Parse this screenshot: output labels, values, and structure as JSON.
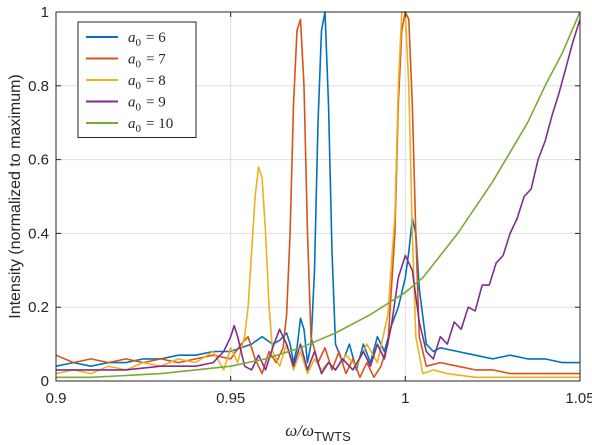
{
  "chart_data": {
    "type": "line",
    "xlabel": "ω/ω_TWTS",
    "xlabel_main": "ω/ω",
    "xlabel_sub": "TWTS",
    "ylabel": "Intensity (normalized to maximum)",
    "xlim": [
      0.9,
      1.05
    ],
    "ylim": [
      0,
      1
    ],
    "xticks": [
      0.9,
      0.95,
      1.0,
      1.05
    ],
    "xtick_labels": [
      "0.9",
      "0.95",
      "1",
      "1.05"
    ],
    "yticks": [
      0,
      0.2,
      0.4,
      0.6,
      0.8,
      1
    ],
    "ytick_labels": [
      "0",
      "0.2",
      "0.4",
      "0.6",
      "0.8",
      "1"
    ],
    "grid": true,
    "legend_position": "top-left",
    "series": [
      {
        "name": "a₀ = 6",
        "name_var": "a",
        "name_sub": "0",
        "name_value": "= 6",
        "color": "#0072BD",
        "points": [
          [
            0.9,
            0.04
          ],
          [
            0.905,
            0.05
          ],
          [
            0.91,
            0.04
          ],
          [
            0.915,
            0.05
          ],
          [
            0.92,
            0.05
          ],
          [
            0.925,
            0.06
          ],
          [
            0.93,
            0.06
          ],
          [
            0.935,
            0.07
          ],
          [
            0.94,
            0.07
          ],
          [
            0.945,
            0.08
          ],
          [
            0.95,
            0.08
          ],
          [
            0.953,
            0.09
          ],
          [
            0.956,
            0.1
          ],
          [
            0.959,
            0.12
          ],
          [
            0.962,
            0.1
          ],
          [
            0.964,
            0.11
          ],
          [
            0.966,
            0.13
          ],
          [
            0.967,
            0.1
          ],
          [
            0.968,
            0.05
          ],
          [
            0.969,
            0.09
          ],
          [
            0.97,
            0.17
          ],
          [
            0.971,
            0.14
          ],
          [
            0.972,
            0.05
          ],
          [
            0.973,
            0.1
          ],
          [
            0.974,
            0.3
          ],
          [
            0.975,
            0.7
          ],
          [
            0.976,
            0.95
          ],
          [
            0.977,
            1.0
          ],
          [
            0.978,
            0.75
          ],
          [
            0.979,
            0.35
          ],
          [
            0.98,
            0.1
          ],
          [
            0.982,
            0.05
          ],
          [
            0.984,
            0.1
          ],
          [
            0.986,
            0.03
          ],
          [
            0.988,
            0.1
          ],
          [
            0.99,
            0.05
          ],
          [
            0.992,
            0.12
          ],
          [
            0.994,
            0.08
          ],
          [
            0.996,
            0.15
          ],
          [
            0.998,
            0.2
          ],
          [
            1.0,
            0.28
          ],
          [
            1.001,
            0.35
          ],
          [
            1.002,
            0.44
          ],
          [
            1.003,
            0.4
          ],
          [
            1.004,
            0.25
          ],
          [
            1.006,
            0.1
          ],
          [
            1.008,
            0.08
          ],
          [
            1.01,
            0.09
          ],
          [
            1.015,
            0.08
          ],
          [
            1.02,
            0.07
          ],
          [
            1.025,
            0.06
          ],
          [
            1.03,
            0.07
          ],
          [
            1.035,
            0.06
          ],
          [
            1.04,
            0.06
          ],
          [
            1.045,
            0.05
          ],
          [
            1.05,
            0.05
          ]
        ]
      },
      {
        "name": "a₀ = 7",
        "name_var": "a",
        "name_sub": "0",
        "name_value": "= 7",
        "color": "#D95319",
        "points": [
          [
            0.9,
            0.07
          ],
          [
            0.905,
            0.05
          ],
          [
            0.91,
            0.06
          ],
          [
            0.915,
            0.05
          ],
          [
            0.92,
            0.06
          ],
          [
            0.925,
            0.05
          ],
          [
            0.93,
            0.06
          ],
          [
            0.935,
            0.05
          ],
          [
            0.94,
            0.06
          ],
          [
            0.945,
            0.07
          ],
          [
            0.95,
            0.06
          ],
          [
            0.953,
            0.1
          ],
          [
            0.955,
            0.12
          ],
          [
            0.957,
            0.06
          ],
          [
            0.959,
            0.02
          ],
          [
            0.961,
            0.08
          ],
          [
            0.963,
            0.05
          ],
          [
            0.965,
            0.09
          ],
          [
            0.966,
            0.18
          ],
          [
            0.967,
            0.4
          ],
          [
            0.968,
            0.75
          ],
          [
            0.969,
            0.95
          ],
          [
            0.97,
            0.98
          ],
          [
            0.971,
            0.8
          ],
          [
            0.972,
            0.4
          ],
          [
            0.973,
            0.12
          ],
          [
            0.975,
            0.05
          ],
          [
            0.977,
            0.09
          ],
          [
            0.979,
            0.03
          ],
          [
            0.981,
            0.08
          ],
          [
            0.983,
            0.02
          ],
          [
            0.985,
            0.06
          ],
          [
            0.987,
            0.01
          ],
          [
            0.989,
            0.05
          ],
          [
            0.991,
            0.01
          ],
          [
            0.993,
            0.04
          ],
          [
            0.995,
            0.1
          ],
          [
            0.997,
            0.4
          ],
          [
            0.998,
            0.75
          ],
          [
            0.999,
            0.95
          ],
          [
            1.0,
            1.0
          ],
          [
            1.001,
            0.98
          ],
          [
            1.002,
            0.75
          ],
          [
            1.003,
            0.4
          ],
          [
            1.004,
            0.12
          ],
          [
            1.006,
            0.04
          ],
          [
            1.01,
            0.05
          ],
          [
            1.015,
            0.04
          ],
          [
            1.02,
            0.03
          ],
          [
            1.025,
            0.03
          ],
          [
            1.03,
            0.02
          ],
          [
            1.035,
            0.02
          ],
          [
            1.04,
            0.02
          ],
          [
            1.045,
            0.02
          ],
          [
            1.05,
            0.02
          ]
        ]
      },
      {
        "name": "a₀ = 8",
        "name_var": "a",
        "name_sub": "0",
        "name_value": "= 8",
        "color": "#EDB120",
        "points": [
          [
            0.9,
            0.02
          ],
          [
            0.905,
            0.03
          ],
          [
            0.91,
            0.02
          ],
          [
            0.915,
            0.04
          ],
          [
            0.92,
            0.03
          ],
          [
            0.925,
            0.05
          ],
          [
            0.93,
            0.04
          ],
          [
            0.935,
            0.06
          ],
          [
            0.94,
            0.05
          ],
          [
            0.945,
            0.08
          ],
          [
            0.948,
            0.03
          ],
          [
            0.95,
            0.09
          ],
          [
            0.952,
            0.05
          ],
          [
            0.954,
            0.12
          ],
          [
            0.955,
            0.2
          ],
          [
            0.956,
            0.35
          ],
          [
            0.957,
            0.5
          ],
          [
            0.958,
            0.58
          ],
          [
            0.959,
            0.55
          ],
          [
            0.96,
            0.4
          ],
          [
            0.961,
            0.2
          ],
          [
            0.962,
            0.08
          ],
          [
            0.964,
            0.04
          ],
          [
            0.966,
            0.1
          ],
          [
            0.968,
            0.03
          ],
          [
            0.97,
            0.08
          ],
          [
            0.972,
            0.02
          ],
          [
            0.974,
            0.06
          ],
          [
            0.976,
            0.03
          ],
          [
            0.978,
            0.05
          ],
          [
            0.98,
            0.03
          ],
          [
            0.983,
            0.07
          ],
          [
            0.986,
            0.04
          ],
          [
            0.989,
            0.1
          ],
          [
            0.992,
            0.05
          ],
          [
            0.995,
            0.18
          ],
          [
            0.997,
            0.45
          ],
          [
            0.998,
            0.8
          ],
          [
            0.999,
            1.0
          ],
          [
            1.0,
            1.0
          ],
          [
            1.001,
            0.8
          ],
          [
            1.002,
            0.4
          ],
          [
            1.003,
            0.12
          ],
          [
            1.005,
            0.02
          ],
          [
            1.008,
            0.03
          ],
          [
            1.012,
            0.02
          ],
          [
            1.02,
            0.01
          ],
          [
            1.03,
            0.01
          ],
          [
            1.04,
            0.01
          ],
          [
            1.05,
            0.01
          ]
        ]
      },
      {
        "name": "a₀ = 9",
        "name_var": "a",
        "name_sub": "0",
        "name_value": "= 9",
        "color": "#7E2F8E",
        "points": [
          [
            0.9,
            0.03
          ],
          [
            0.91,
            0.03
          ],
          [
            0.92,
            0.03
          ],
          [
            0.93,
            0.04
          ],
          [
            0.94,
            0.04
          ],
          [
            0.945,
            0.05
          ],
          [
            0.948,
            0.08
          ],
          [
            0.95,
            0.12
          ],
          [
            0.951,
            0.15
          ],
          [
            0.952,
            0.12
          ],
          [
            0.954,
            0.04
          ],
          [
            0.956,
            0.03
          ],
          [
            0.958,
            0.07
          ],
          [
            0.96,
            0.03
          ],
          [
            0.962,
            0.09
          ],
          [
            0.964,
            0.14
          ],
          [
            0.966,
            0.1
          ],
          [
            0.968,
            0.04
          ],
          [
            0.97,
            0.1
          ],
          [
            0.972,
            0.03
          ],
          [
            0.974,
            0.08
          ],
          [
            0.976,
            0.02
          ],
          [
            0.978,
            0.05
          ],
          [
            0.98,
            0.03
          ],
          [
            0.982,
            0.06
          ],
          [
            0.985,
            0.03
          ],
          [
            0.988,
            0.08
          ],
          [
            0.99,
            0.04
          ],
          [
            0.992,
            0.1
          ],
          [
            0.994,
            0.06
          ],
          [
            0.996,
            0.15
          ],
          [
            0.998,
            0.28
          ],
          [
            1.0,
            0.34
          ],
          [
            1.002,
            0.3
          ],
          [
            1.004,
            0.16
          ],
          [
            1.006,
            0.08
          ],
          [
            1.008,
            0.06
          ],
          [
            1.01,
            0.12
          ],
          [
            1.012,
            0.1
          ],
          [
            1.014,
            0.16
          ],
          [
            1.016,
            0.14
          ],
          [
            1.018,
            0.2
          ],
          [
            1.02,
            0.19
          ],
          [
            1.022,
            0.26
          ],
          [
            1.024,
            0.26
          ],
          [
            1.026,
            0.32
          ],
          [
            1.028,
            0.34
          ],
          [
            1.03,
            0.4
          ],
          [
            1.032,
            0.44
          ],
          [
            1.034,
            0.5
          ],
          [
            1.036,
            0.52
          ],
          [
            1.038,
            0.6
          ],
          [
            1.04,
            0.65
          ],
          [
            1.042,
            0.72
          ],
          [
            1.044,
            0.78
          ],
          [
            1.046,
            0.85
          ],
          [
            1.048,
            0.92
          ],
          [
            1.05,
            0.98
          ]
        ]
      },
      {
        "name": "a₀ = 10",
        "name_var": "a",
        "name_sub": "0",
        "name_value": "= 10",
        "color": "#77AC30",
        "points": [
          [
            0.9,
            0.01
          ],
          [
            0.91,
            0.01
          ],
          [
            0.92,
            0.015
          ],
          [
            0.93,
            0.02
          ],
          [
            0.94,
            0.03
          ],
          [
            0.95,
            0.04
          ],
          [
            0.96,
            0.06
          ],
          [
            0.97,
            0.09
          ],
          [
            0.98,
            0.13
          ],
          [
            0.99,
            0.18
          ],
          [
            1.0,
            0.24
          ],
          [
            1.005,
            0.28
          ],
          [
            1.01,
            0.34
          ],
          [
            1.015,
            0.4
          ],
          [
            1.02,
            0.47
          ],
          [
            1.025,
            0.54
          ],
          [
            1.03,
            0.62
          ],
          [
            1.035,
            0.7
          ],
          [
            1.04,
            0.8
          ],
          [
            1.045,
            0.89
          ],
          [
            1.05,
            1.0
          ]
        ]
      }
    ]
  }
}
